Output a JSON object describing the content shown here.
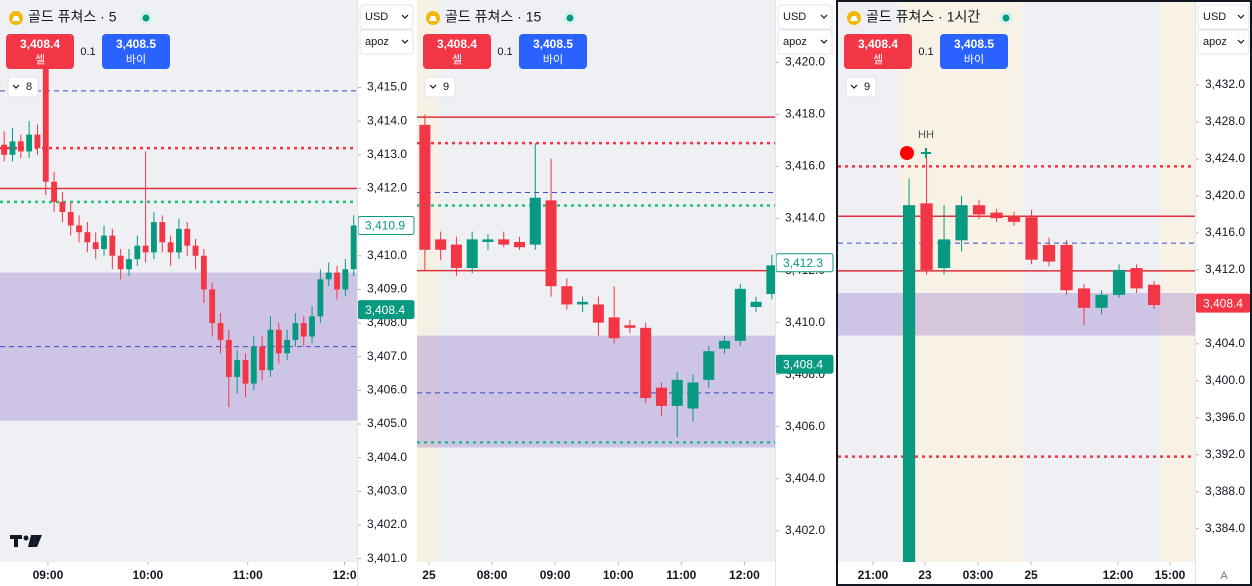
{
  "up_color": "#089981",
  "down_color": "#f23645",
  "footer": "A",
  "panels": [
    {
      "title": "골드 퓨쳐스 · 5",
      "sell": {
        "price": "3,408.4",
        "label": "셀"
      },
      "spread": "0.1",
      "buy": {
        "price": "3,408.5",
        "label": "바이"
      },
      "interval": "8",
      "currency": "USD",
      "scale": "apoz",
      "ylim": [
        3400.9,
        3417.6
      ],
      "yticks": [
        {
          "value": 3415,
          "label": "3,415.0"
        },
        {
          "value": 3414,
          "label": "3,414.0"
        },
        {
          "value": 3413,
          "label": "3,413.0"
        },
        {
          "value": 3412,
          "label": "3,412.0"
        },
        {
          "value": 3411,
          "label": "3,411.0"
        },
        {
          "value": 3410,
          "label": "3,410.0"
        },
        {
          "value": 3409,
          "label": "3,409.0"
        },
        {
          "value": 3408,
          "label": "3,408.0"
        },
        {
          "value": 3407,
          "label": "3,407.0"
        },
        {
          "value": 3406,
          "label": "3,406.0"
        },
        {
          "value": 3405,
          "label": "3,405.0"
        },
        {
          "value": 3404,
          "label": "3,404.0"
        },
        {
          "value": 3403,
          "label": "3,403.0"
        },
        {
          "value": 3402,
          "label": "3,402.0"
        },
        {
          "value": 3401,
          "label": "3,401.0"
        }
      ],
      "xlim": [
        -0.5,
        42.4
      ],
      "xticks": [
        {
          "value": 5.26,
          "label": "09:00"
        },
        {
          "value": 17.27,
          "label": "10:00"
        },
        {
          "value": 29.27,
          "label": "11:00"
        },
        {
          "value": 40.9,
          "label": "12:0"
        }
      ],
      "zone": [
        3405.1,
        3409.5
      ],
      "levels": [
        {
          "value": 3414.9,
          "color": "#3b48c8",
          "style": "dashed"
        },
        {
          "value": 3413.2,
          "color": "#f23645",
          "style": "dotted"
        },
        {
          "value": 3412.0,
          "color": "#e0303a",
          "style": "solid"
        },
        {
          "value": 3411.6,
          "color": "#22c47a",
          "style": "dotted"
        },
        {
          "value": 3407.3,
          "color": "#3b48c8",
          "style": "dashed"
        }
      ],
      "price_tags": [
        {
          "value": 3410.9,
          "label": "3,410.9",
          "style": "outline",
          "color": "#089981"
        },
        {
          "value": 3408.4,
          "label": "3,408.4",
          "style": "fill",
          "color": "#089981"
        }
      ],
      "candles": [
        [
          3413.3,
          3413.7,
          3412.8,
          3413.0
        ],
        [
          3413.0,
          3413.8,
          3412.8,
          3413.4
        ],
        [
          3413.4,
          3413.6,
          3412.9,
          3413.1
        ],
        [
          3413.1,
          3414.0,
          3412.9,
          3413.6
        ],
        [
          3413.6,
          3413.9,
          3413.0,
          3413.2
        ],
        [
          3415.6,
          3416.0,
          3411.8,
          3412.2
        ],
        [
          3412.2,
          3412.5,
          3411.3,
          3411.6
        ],
        [
          3411.6,
          3411.9,
          3411.0,
          3411.3
        ],
        [
          3411.3,
          3411.6,
          3410.6,
          3410.9
        ],
        [
          3410.9,
          3411.2,
          3410.4,
          3410.7
        ],
        [
          3410.7,
          3411.0,
          3410.1,
          3410.4
        ],
        [
          3410.4,
          3410.7,
          3409.9,
          3410.2
        ],
        [
          3410.2,
          3410.9,
          3410.0,
          3410.6
        ],
        [
          3410.6,
          3410.8,
          3409.6,
          3410.0
        ],
        [
          3410.0,
          3410.2,
          3409.3,
          3409.6
        ],
        [
          3409.6,
          3410.2,
          3409.4,
          3409.9
        ],
        [
          3409.9,
          3410.6,
          3409.7,
          3410.3
        ],
        [
          3410.3,
          3413.1,
          3409.8,
          3410.1
        ],
        [
          3410.1,
          3411.3,
          3409.9,
          3411.0
        ],
        [
          3411.0,
          3411.2,
          3410.1,
          3410.4
        ],
        [
          3410.4,
          3410.6,
          3409.7,
          3410.1
        ],
        [
          3410.1,
          3411.1,
          3409.9,
          3410.8
        ],
        [
          3410.8,
          3411.0,
          3410.0,
          3410.3
        ],
        [
          3410.3,
          3410.5,
          3409.6,
          3410.0
        ],
        [
          3410.0,
          3410.2,
          3408.6,
          3409.0
        ],
        [
          3409.0,
          3409.2,
          3407.6,
          3408.0
        ],
        [
          3408.0,
          3408.3,
          3407.1,
          3407.5
        ],
        [
          3407.5,
          3407.8,
          3405.5,
          3406.4
        ],
        [
          3406.4,
          3407.2,
          3405.9,
          3406.9
        ],
        [
          3406.9,
          3407.1,
          3405.8,
          3406.2
        ],
        [
          3406.2,
          3407.6,
          3406.0,
          3407.3
        ],
        [
          3407.3,
          3407.6,
          3406.3,
          3406.6
        ],
        [
          3406.6,
          3408.2,
          3406.4,
          3407.8
        ],
        [
          3407.8,
          3408.0,
          3406.8,
          3407.1
        ],
        [
          3407.1,
          3407.8,
          3406.9,
          3407.5
        ],
        [
          3407.5,
          3408.3,
          3407.3,
          3408.0
        ],
        [
          3408.0,
          3408.2,
          3407.3,
          3407.6
        ],
        [
          3407.6,
          3408.5,
          3407.4,
          3408.2
        ],
        [
          3408.2,
          3409.6,
          3408.0,
          3409.3
        ],
        [
          3409.3,
          3409.8,
          3409.1,
          3409.5
        ],
        [
          3409.5,
          3409.7,
          3408.7,
          3409.0
        ],
        [
          3409.0,
          3409.9,
          3408.8,
          3409.6
        ],
        [
          3409.6,
          3411.2,
          3409.4,
          3410.9
        ]
      ]
    },
    {
      "title": "골드 퓨쳐스 · 15",
      "sell": {
        "price": "3,408.4",
        "label": "셀"
      },
      "spread": "0.1",
      "buy": {
        "price": "3,408.5",
        "label": "바이"
      },
      "interval": "9",
      "currency": "USD",
      "scale": "apoz",
      "ylim": [
        3400.8,
        3422.4
      ],
      "yticks": [
        {
          "value": 3420,
          "label": "3,420.0"
        },
        {
          "value": 3418,
          "label": "3,418.0"
        },
        {
          "value": 3416,
          "label": "3,416.0"
        },
        {
          "value": 3414,
          "label": "3,414.0"
        },
        {
          "value": 3412,
          "label": "3,412.0"
        },
        {
          "value": 3410,
          "label": "3,410.0"
        },
        {
          "value": 3408,
          "label": "3,408.0"
        },
        {
          "value": 3406,
          "label": "3,406.0"
        },
        {
          "value": 3404,
          "label": "3,404.0"
        },
        {
          "value": 3402,
          "label": "3,402.0"
        }
      ],
      "xlim": [
        -0.5,
        22.2
      ],
      "xticks": [
        {
          "value": 0.26,
          "label": "25"
        },
        {
          "value": 4.26,
          "label": "08:00"
        },
        {
          "value": 8.26,
          "label": "09:00"
        },
        {
          "value": 12.26,
          "label": "10:00"
        },
        {
          "value": 16.26,
          "label": "11:00"
        },
        {
          "value": 20.26,
          "label": "12:00"
        }
      ],
      "zone": [
        3405.2,
        3409.5
      ],
      "levels": [
        {
          "value": 3417.9,
          "color": "#e0303a",
          "style": "solid"
        },
        {
          "value": 3416.9,
          "color": "#f23645",
          "style": "dotted"
        },
        {
          "value": 3415.0,
          "color": "#3b48c8",
          "style": "dashed"
        },
        {
          "value": 3414.5,
          "color": "#22c47a",
          "style": "dotted"
        },
        {
          "value": 3412.0,
          "color": "#e0303a",
          "style": "solid"
        },
        {
          "value": 3407.3,
          "color": "#3b48c8",
          "style": "dashed"
        },
        {
          "value": 3405.4,
          "color": "#22b8a0",
          "style": "dotted"
        }
      ],
      "price_tags": [
        {
          "value": 3412.3,
          "label": "3,412.3",
          "style": "outline",
          "color": "#089981"
        },
        {
          "value": 3408.4,
          "label": "3,408.4",
          "style": "fill",
          "color": "#089981"
        }
      ],
      "candles": [
        [
          3417.6,
          3418.0,
          3412.0,
          3412.8
        ],
        [
          3413.2,
          3413.5,
          3412.4,
          3412.8
        ],
        [
          3413.0,
          3413.3,
          3411.8,
          3412.1
        ],
        [
          3412.1,
          3413.5,
          3411.9,
          3413.2
        ],
        [
          3413.1,
          3413.4,
          3412.8,
          3413.2
        ],
        [
          3413.2,
          3413.5,
          3412.9,
          3413.0
        ],
        [
          3413.1,
          3413.3,
          3412.8,
          3412.9
        ],
        [
          3413.0,
          3416.9,
          3412.8,
          3414.8
        ],
        [
          3414.7,
          3416.3,
          3411.0,
          3411.4
        ],
        [
          3411.4,
          3411.7,
          3410.5,
          3410.7
        ],
        [
          3410.7,
          3411.0,
          3410.4,
          3410.8
        ],
        [
          3410.7,
          3411.0,
          3409.5,
          3410.0
        ],
        [
          3410.2,
          3411.4,
          3409.2,
          3409.4
        ],
        [
          3409.9,
          3410.1,
          3409.6,
          3409.8
        ],
        [
          3409.8,
          3410.0,
          3406.9,
          3407.1
        ],
        [
          3407.5,
          3407.7,
          3406.4,
          3406.8
        ],
        [
          3406.8,
          3408.1,
          3405.6,
          3407.8
        ],
        [
          3406.7,
          3408.0,
          3406.2,
          3407.7
        ],
        [
          3407.8,
          3409.1,
          3407.5,
          3408.9
        ],
        [
          3409.0,
          3409.5,
          3408.8,
          3409.3
        ],
        [
          3409.3,
          3411.5,
          3409.1,
          3411.3
        ],
        [
          3410.6,
          3411.0,
          3410.4,
          3410.8
        ],
        [
          3411.1,
          3412.6,
          3410.9,
          3412.2
        ]
      ]
    },
    {
      "title": "골드 퓨쳐스 · 1시간",
      "sell": {
        "price": "3,408.4",
        "label": "셀"
      },
      "spread": "0.1",
      "buy": {
        "price": "3,408.5",
        "label": "바이"
      },
      "interval": "9",
      "currency": "USD",
      "scale": "apoz",
      "annotation": "HH",
      "ylim": [
        3380.4,
        3441.2
      ],
      "yticks": [
        {
          "value": 3432,
          "label": "3,432.0"
        },
        {
          "value": 3428,
          "label": "3,428.0"
        },
        {
          "value": 3424,
          "label": "3,424.0"
        },
        {
          "value": 3420,
          "label": "3,420.0"
        },
        {
          "value": 3416,
          "label": "3,416.0"
        },
        {
          "value": 3412,
          "label": "3,412.0"
        },
        {
          "value": 3408,
          "label": "3,408.0"
        },
        {
          "value": 3404,
          "label": "3,404.0"
        },
        {
          "value": 3400,
          "label": "3,400.0"
        },
        {
          "value": 3396,
          "label": "3,396.0"
        },
        {
          "value": 3392,
          "label": "3,392.0"
        },
        {
          "value": 3388,
          "label": "3,388.0"
        },
        {
          "value": 3384,
          "label": "3,384.0"
        }
      ],
      "xlim": [
        -4.06,
        16.34
      ],
      "xticks": [
        {
          "value": -2.06,
          "label": "21:00"
        },
        {
          "value": 0.91,
          "label": "23"
        },
        {
          "value": 3.94,
          "label": "03:00"
        },
        {
          "value": 6.97,
          "label": "25"
        },
        {
          "value": 11.94,
          "label": "12:00"
        },
        {
          "value": 14.91,
          "label": "15:00"
        }
      ],
      "zone": [
        3404.9,
        3409.5
      ],
      "levels": [
        {
          "value": 3423.2,
          "color": "#f23645",
          "style": "dotted"
        },
        {
          "value": 3417.8,
          "color": "#e0303a",
          "style": "solid"
        },
        {
          "value": 3414.9,
          "color": "#3b48c8",
          "style": "dashed"
        },
        {
          "value": 3411.9,
          "color": "#e0303a",
          "style": "solid"
        },
        {
          "value": 3391.8,
          "color": "#f23645",
          "style": "dotted"
        }
      ],
      "price_tags": [
        {
          "value": 3408.4,
          "label": "3,408.4",
          "style": "fill",
          "color": "#f23645"
        }
      ],
      "candles": [
        [
          3380.0,
          3421.9,
          3379.5,
          3419.0
        ],
        [
          3419.2,
          3424.6,
          3411.5,
          3412.0
        ],
        [
          3412.2,
          3419.0,
          3411.5,
          3415.3
        ],
        [
          3415.2,
          3420.0,
          3414.0,
          3419.0
        ],
        [
          3419.0,
          3419.6,
          3417.5,
          3418.0
        ],
        [
          3418.2,
          3418.6,
          3417.2,
          3417.6
        ],
        [
          3417.8,
          3418.3,
          3416.8,
          3417.2
        ],
        [
          3417.7,
          3418.5,
          3412.6,
          3413.1
        ],
        [
          3414.7,
          3415.5,
          3412.4,
          3412.9
        ],
        [
          3414.7,
          3415.2,
          3409.3,
          3409.8
        ],
        [
          3410.0,
          3410.5,
          3406.0,
          3407.9
        ],
        [
          3407.9,
          3409.8,
          3407.2,
          3409.3
        ],
        [
          3409.3,
          3412.6,
          3409.0,
          3412.0
        ],
        [
          3412.2,
          3412.6,
          3409.5,
          3410.0
        ],
        [
          3410.4,
          3410.8,
          3407.8,
          3408.2
        ]
      ]
    }
  ]
}
